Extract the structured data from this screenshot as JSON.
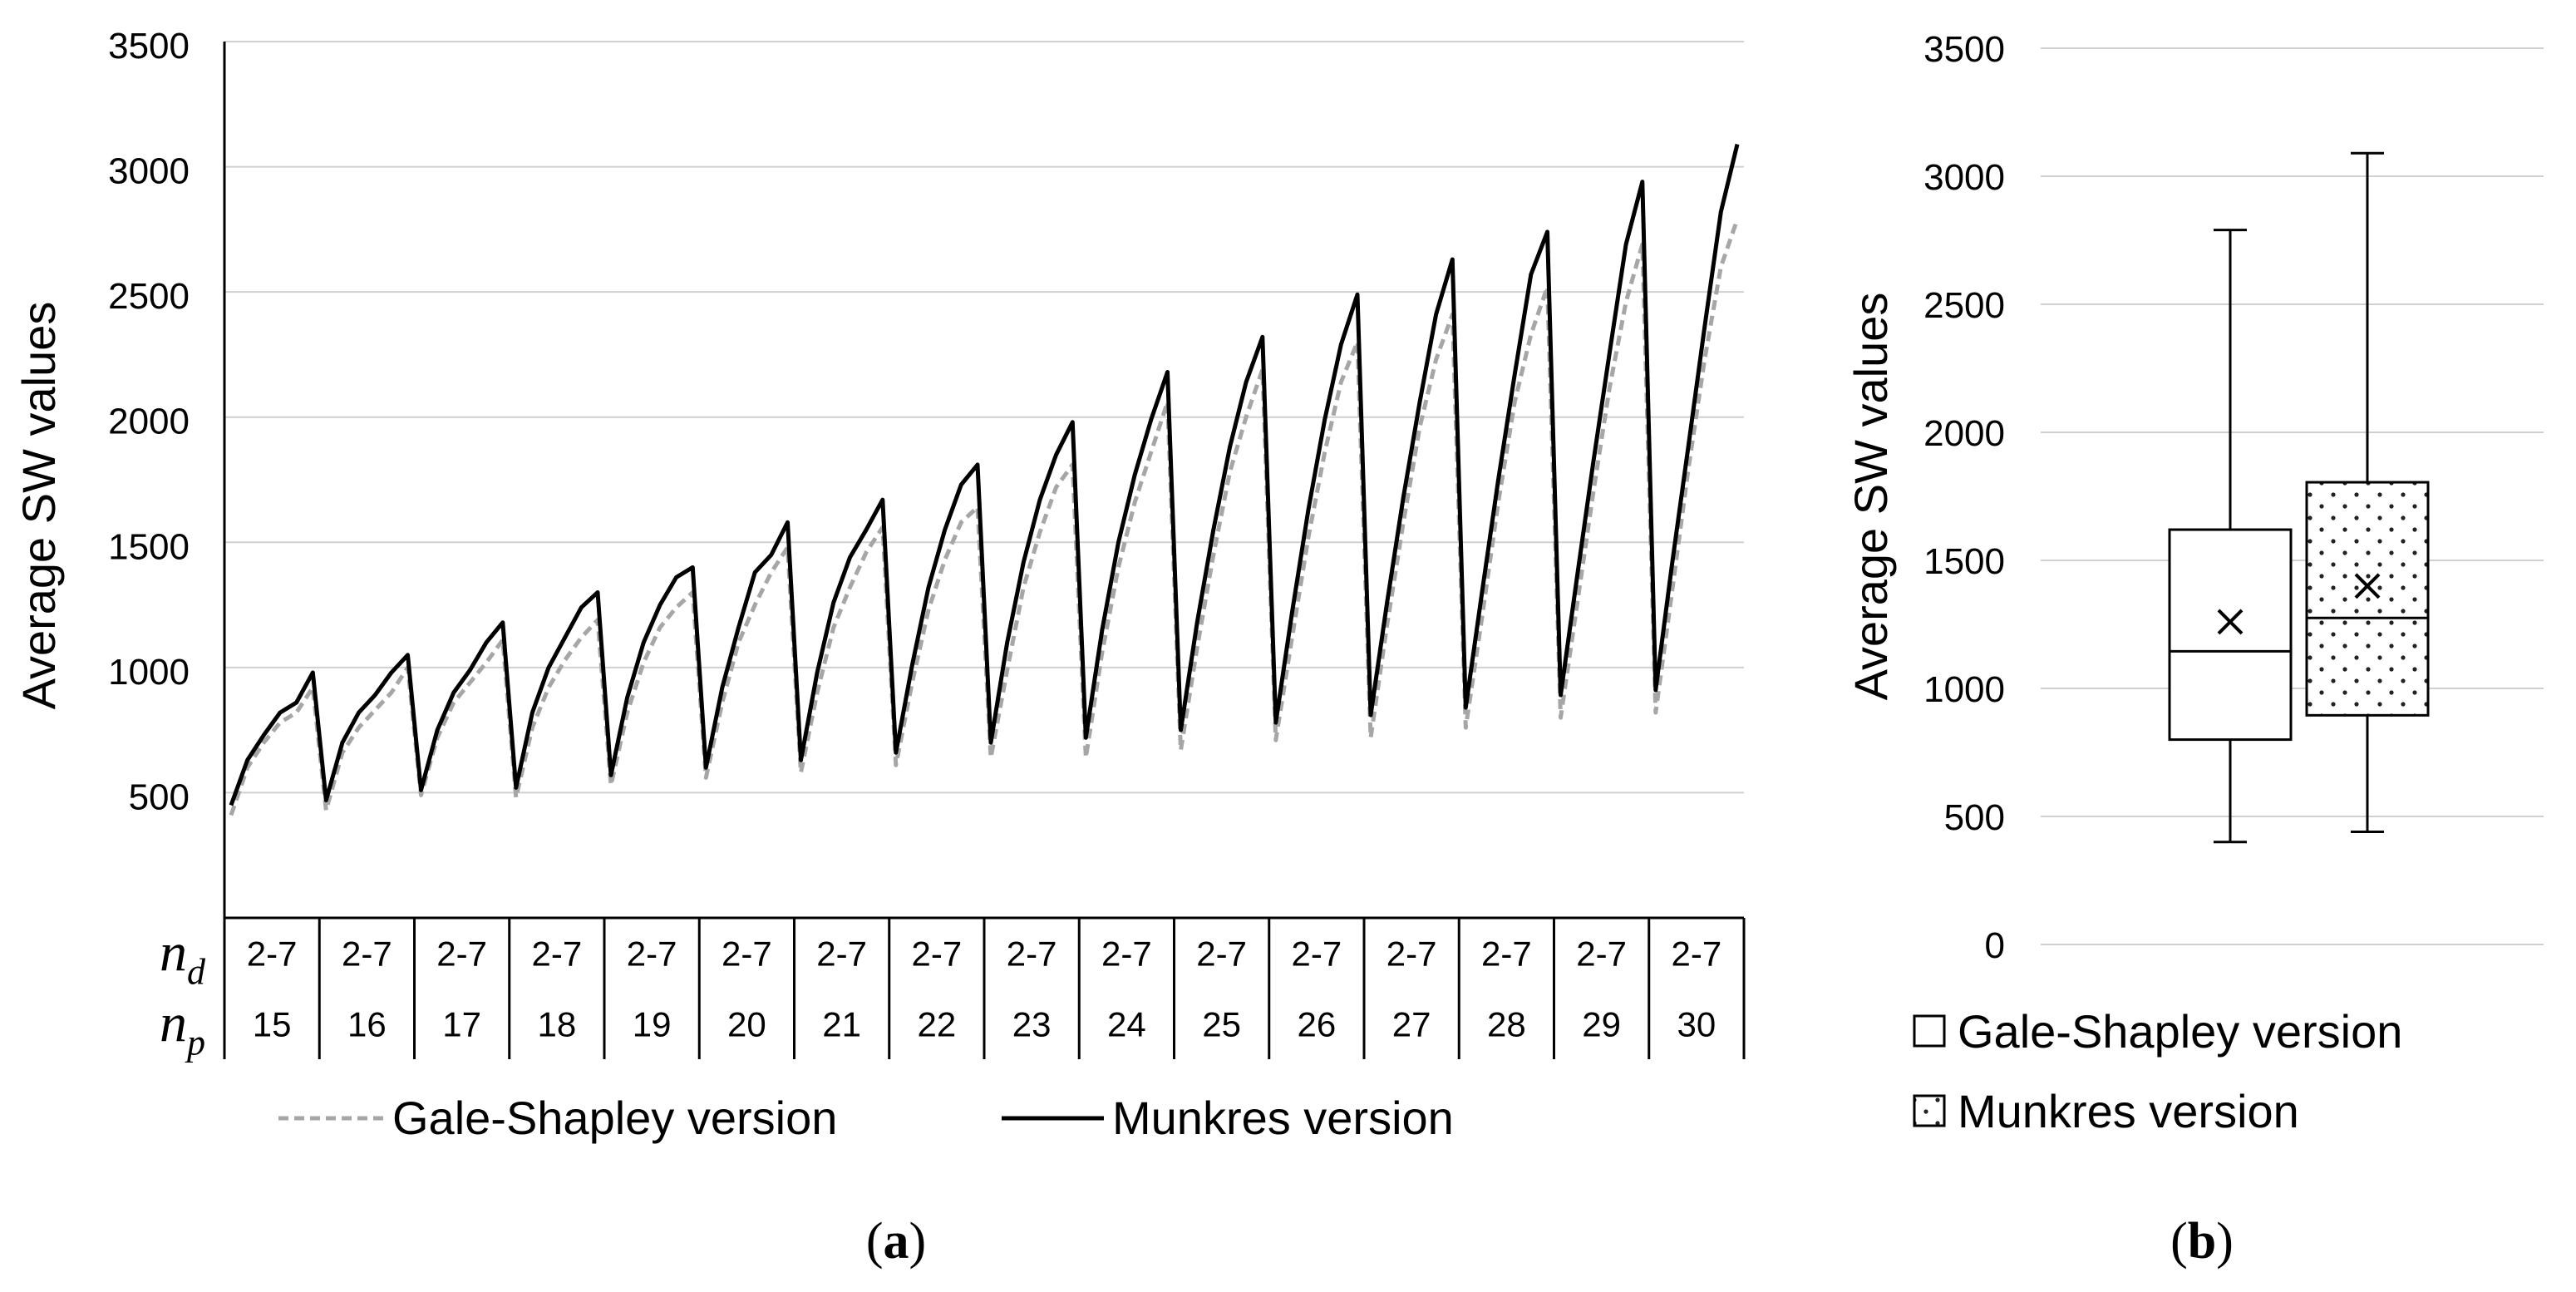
{
  "chart_data": [
    {
      "type": "line",
      "ylabel": "Average SW values",
      "ylim": [
        0,
        3500
      ],
      "yticks": [
        500,
        1000,
        1500,
        2000,
        2500,
        3000,
        3500
      ],
      "grid": true,
      "x_rows": [
        {
          "label": "n",
          "sub": "d",
          "values": [
            "2-7",
            "2-7",
            "2-7",
            "2-7",
            "2-7",
            "2-7",
            "2-7",
            "2-7",
            "2-7",
            "2-7",
            "2-7",
            "2-7",
            "2-7",
            "2-7",
            "2-7",
            "2-7"
          ]
        },
        {
          "label": "n",
          "sub": "p",
          "values": [
            "15",
            "16",
            "17",
            "18",
            "19",
            "20",
            "21",
            "22",
            "23",
            "24",
            "25",
            "26",
            "27",
            "28",
            "29",
            "30"
          ]
        }
      ],
      "points_per_group": 6,
      "series": [
        {
          "name": "Gale-Shapley version",
          "style": "dashed",
          "color": "#a6a6a6",
          "values": [
            [
              410,
              600,
              700,
              780,
              820,
              920
            ],
            [
              430,
              660,
              760,
              830,
              900,
              1000
            ],
            [
              490,
              720,
              860,
              940,
              1020,
              1110
            ],
            [
              480,
              760,
              920,
              1030,
              1120,
              1190
            ],
            [
              530,
              820,
              1020,
              1160,
              1240,
              1300
            ],
            [
              560,
              860,
              1100,
              1250,
              1380,
              1480
            ],
            [
              580,
              900,
              1160,
              1320,
              1460,
              1560
            ],
            [
              610,
              940,
              1230,
              1430,
              1580,
              1640
            ],
            [
              640,
              990,
              1320,
              1540,
              1720,
              1810
            ],
            [
              640,
              1060,
              1400,
              1660,
              1860,
              2060
            ],
            [
              670,
              1080,
              1450,
              1780,
              2000,
              2190
            ],
            [
              710,
              1120,
              1520,
              1860,
              2140,
              2300
            ],
            [
              720,
              1170,
              1580,
              1960,
              2230,
              2410
            ],
            [
              760,
              1200,
              1660,
              2060,
              2330,
              2520
            ],
            [
              800,
              1250,
              1700,
              2120,
              2460,
              2690
            ],
            [
              820,
              1300,
              1790,
              2230,
              2600,
              2790
            ]
          ]
        },
        {
          "name": "Munkres version",
          "style": "solid",
          "color": "#000000",
          "values": [
            [
              450,
              630,
              730,
              820,
              860,
              980
            ],
            [
              470,
              700,
              820,
              890,
              980,
              1050
            ],
            [
              510,
              750,
              900,
              990,
              1100,
              1180
            ],
            [
              520,
              820,
              1000,
              1120,
              1240,
              1300
            ],
            [
              570,
              880,
              1100,
              1250,
              1360,
              1400
            ],
            [
              600,
              920,
              1160,
              1380,
              1450,
              1580
            ],
            [
              630,
              980,
              1260,
              1440,
              1550,
              1670
            ],
            [
              660,
              1010,
              1320,
              1550,
              1730,
              1810
            ],
            [
              700,
              1100,
              1420,
              1670,
              1850,
              1980
            ],
            [
              720,
              1150,
              1500,
              1770,
              1990,
              2180
            ],
            [
              750,
              1180,
              1550,
              1880,
              2140,
              2320
            ],
            [
              780,
              1220,
              1630,
              1990,
              2290,
              2490
            ],
            [
              810,
              1260,
              1680,
              2060,
              2410,
              2630
            ],
            [
              840,
              1300,
              1750,
              2170,
              2570,
              2740
            ],
            [
              890,
              1360,
              1820,
              2260,
              2690,
              2940
            ],
            [
              910,
              1410,
              1880,
              2360,
              2820,
              3090
            ]
          ]
        }
      ],
      "legend": [
        "Gale-Shapley version",
        "Munkres version"
      ],
      "legend_position": "bottom"
    },
    {
      "type": "box",
      "ylabel": "Average SW values",
      "ylim": [
        0,
        3500
      ],
      "yticks": [
        0,
        500,
        1000,
        1500,
        2000,
        2500,
        3000,
        3500
      ],
      "grid": true,
      "boxes": [
        {
          "name": "Gale-Shapley version",
          "min": 400,
          "q1": 800,
          "median": 1145,
          "mean": 1260,
          "q3": 1620,
          "max": 2790,
          "fill": "plain"
        },
        {
          "name": "Munkres version",
          "min": 440,
          "q1": 895,
          "median": 1275,
          "mean": 1400,
          "q3": 1805,
          "max": 3090,
          "fill": "dotted"
        }
      ],
      "legend": [
        "Gale-Shapley version",
        "Munkres version"
      ],
      "legend_position": "bottom"
    }
  ],
  "captions": [
    "(a)",
    "(b)"
  ],
  "labels": {
    "a": {
      "open": "(",
      "letter": "a",
      "close": ")"
    },
    "b": {
      "open": "(",
      "letter": "b",
      "close": ")"
    }
  }
}
